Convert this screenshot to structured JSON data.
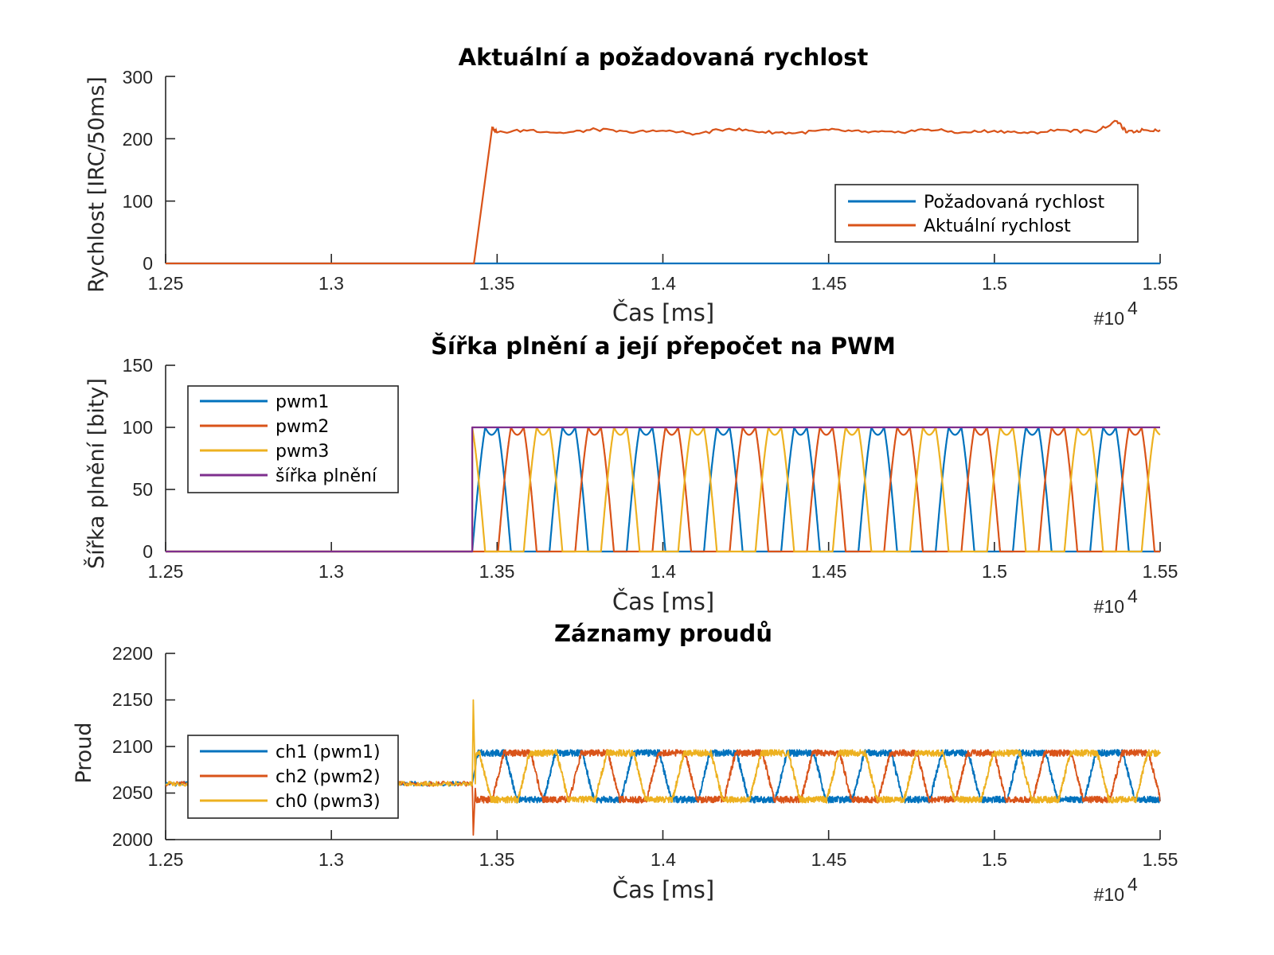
{
  "chart_data": [
    {
      "type": "line",
      "title": "Aktuální a požadovaná rychlost",
      "xlabel": "Čas [ms]",
      "ylabel": "Rychlost [IRC/50ms]",
      "x_multiplier": "#10",
      "x_multiplier_exp": "4",
      "xlim": [
        1.25,
        1.55
      ],
      "ylim": [
        0,
        300
      ],
      "xticks": [
        "1.25",
        "1.3",
        "1.35",
        "1.4",
        "1.45",
        "1.5",
        "1.55"
      ],
      "yticks": [
        "0",
        "100",
        "200",
        "300"
      ],
      "legend_position": "middle-right",
      "series": [
        {
          "name": "Požadovaná rychlost",
          "color": "#0072BD",
          "points": [
            [
              1.25,
              0
            ],
            [
              1.55,
              0
            ]
          ]
        },
        {
          "name": "Aktuální rychlost",
          "color": "#D95319",
          "points": [
            [
              1.25,
              0
            ],
            [
              1.343,
              0
            ],
            [
              1.3485,
              218
            ],
            [
              1.35,
              210
            ],
            [
              1.36,
              214
            ],
            [
              1.37,
              209
            ],
            [
              1.38,
              215
            ],
            [
              1.39,
              210
            ],
            [
              1.4,
              213
            ],
            [
              1.41,
              208
            ],
            [
              1.42,
              216
            ],
            [
              1.43,
              211
            ],
            [
              1.44,
              209
            ],
            [
              1.45,
              214
            ],
            [
              1.46,
              211
            ],
            [
              1.47,
              210
            ],
            [
              1.48,
              215
            ],
            [
              1.49,
              210
            ],
            [
              1.5,
              213
            ],
            [
              1.51,
              209
            ],
            [
              1.52,
              214
            ],
            [
              1.53,
              211
            ],
            [
              1.537,
              228
            ],
            [
              1.54,
              210
            ],
            [
              1.545,
              214
            ],
            [
              1.55,
              214
            ]
          ]
        }
      ]
    },
    {
      "type": "line",
      "title": "Šířka plnění a její přepočet na PWM",
      "xlabel": "Čas [ms]",
      "ylabel": "Šířka plnění [bity]",
      "x_multiplier": "#10",
      "x_multiplier_exp": "4",
      "xlim": [
        1.25,
        1.55
      ],
      "ylim": [
        0,
        150
      ],
      "xticks": [
        "1.25",
        "1.3",
        "1.35",
        "1.4",
        "1.45",
        "1.5",
        "1.55"
      ],
      "yticks": [
        "0",
        "50",
        "100",
        "150"
      ],
      "legend_position": "top-left",
      "wave_start": 1.3425,
      "wave_period": 0.0233,
      "series": [
        {
          "name": "pwm1",
          "color": "#0072BD",
          "phase": 0.0
        },
        {
          "name": "pwm2",
          "color": "#D95319",
          "phase": 0.3333
        },
        {
          "name": "pwm3",
          "color": "#EDB120",
          "phase": 0.6667
        },
        {
          "name": "šířka plnění",
          "color": "#7E2F8E",
          "points": [
            [
              1.25,
              0
            ],
            [
              1.3425,
              0
            ],
            [
              1.3425,
              100
            ],
            [
              1.55,
              100
            ]
          ]
        }
      ]
    },
    {
      "type": "line",
      "title": "Záznamy proudů",
      "xlabel": "Čas [ms]",
      "ylabel": "Proud",
      "x_multiplier": "#10",
      "x_multiplier_exp": "4",
      "xlim": [
        1.25,
        1.55
      ],
      "ylim": [
        2000,
        2200
      ],
      "xticks": [
        "1.25",
        "1.3",
        "1.35",
        "1.4",
        "1.45",
        "1.5",
        "1.55"
      ],
      "yticks": [
        "2000",
        "2050",
        "2100",
        "2150",
        "2200"
      ],
      "legend_position": "middle-left",
      "baseline": 2060,
      "high": 2093,
      "low": 2043,
      "wave_start": 1.3425,
      "wave_period": 0.0233,
      "series": [
        {
          "name": "ch1 (pwm1)",
          "color": "#0072BD",
          "phase": 0.0
        },
        {
          "name": "ch2 (pwm2)",
          "color": "#D95319",
          "phase": 0.3333
        },
        {
          "name": "ch0 (pwm3)",
          "color": "#EDB120",
          "phase": 0.6667
        }
      ]
    }
  ]
}
